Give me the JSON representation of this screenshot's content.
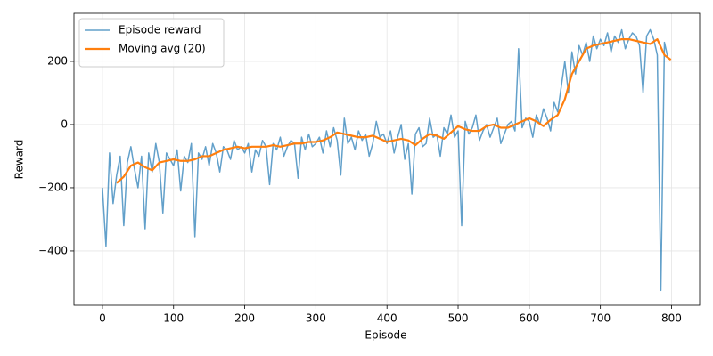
{
  "chart_data": {
    "type": "line",
    "xlabel": "Episode",
    "ylabel": "Reward",
    "xlim": [
      -40,
      839.5
    ],
    "ylim": [
      -572,
      352
    ],
    "xticks": [
      0,
      100,
      200,
      300,
      400,
      500,
      600,
      700,
      800
    ],
    "yticks": [
      {
        "value": -400,
        "label": "−400"
      },
      {
        "value": -200,
        "label": "−200"
      },
      0,
      200
    ],
    "grid": true,
    "legend": "upper left",
    "series": [
      {
        "name": "Episode reward",
        "color": "#1f77b4",
        "opacity": 0.7,
        "width": 1.5,
        "x": [
          0,
          5,
          10,
          15,
          20,
          25,
          30,
          35,
          40,
          45,
          50,
          55,
          60,
          65,
          70,
          75,
          80,
          85,
          90,
          95,
          100,
          105,
          110,
          115,
          120,
          125,
          130,
          135,
          140,
          145,
          150,
          155,
          160,
          165,
          170,
          175,
          180,
          185,
          190,
          195,
          200,
          205,
          210,
          215,
          220,
          225,
          230,
          235,
          240,
          245,
          250,
          255,
          260,
          265,
          270,
          275,
          280,
          285,
          290,
          295,
          300,
          305,
          310,
          315,
          320,
          325,
          330,
          335,
          340,
          345,
          350,
          355,
          360,
          365,
          370,
          375,
          380,
          385,
          390,
          395,
          400,
          405,
          410,
          415,
          420,
          425,
          430,
          435,
          440,
          445,
          450,
          455,
          460,
          465,
          470,
          475,
          480,
          485,
          490,
          495,
          500,
          505,
          510,
          515,
          520,
          525,
          530,
          535,
          540,
          545,
          550,
          555,
          560,
          565,
          570,
          575,
          580,
          585,
          590,
          595,
          600,
          605,
          610,
          615,
          620,
          625,
          630,
          635,
          640,
          645,
          650,
          655,
          660,
          665,
          670,
          675,
          680,
          685,
          690,
          695,
          700,
          705,
          710,
          715,
          720,
          725,
          730,
          735,
          740,
          745,
          750,
          755,
          760,
          765,
          770,
          775,
          780,
          785,
          790,
          795
        ],
        "values": [
          -200,
          -385,
          -90,
          -250,
          -160,
          -100,
          -320,
          -120,
          -70,
          -140,
          -200,
          -100,
          -330,
          -90,
          -150,
          -60,
          -120,
          -280,
          -90,
          -110,
          -130,
          -80,
          -210,
          -100,
          -120,
          -60,
          -355,
          -90,
          -110,
          -70,
          -130,
          -60,
          -90,
          -150,
          -70,
          -80,
          -110,
          -50,
          -80,
          -70,
          -90,
          -60,
          -150,
          -80,
          -100,
          -50,
          -70,
          -190,
          -60,
          -80,
          -40,
          -100,
          -70,
          -50,
          -60,
          -170,
          -40,
          -80,
          -30,
          -70,
          -60,
          -40,
          -90,
          -20,
          -70,
          -10,
          -50,
          -160,
          20,
          -60,
          -40,
          -80,
          -20,
          -50,
          -30,
          -100,
          -60,
          10,
          -40,
          -30,
          -60,
          -20,
          -90,
          -40,
          0,
          -110,
          -60,
          -220,
          -30,
          -10,
          -70,
          -60,
          20,
          -40,
          -30,
          -100,
          -10,
          -30,
          30,
          -40,
          -20,
          -320,
          10,
          -30,
          -10,
          30,
          -50,
          -20,
          0,
          -40,
          -10,
          20,
          -60,
          -30,
          0,
          10,
          -20,
          240,
          -10,
          20,
          10,
          -40,
          30,
          0,
          50,
          20,
          -20,
          70,
          40,
          120,
          200,
          100,
          230,
          160,
          250,
          220,
          260,
          200,
          280,
          240,
          270,
          250,
          290,
          230,
          280,
          260,
          300,
          240,
          270,
          290,
          280,
          250,
          100,
          280,
          300,
          270,
          220,
          -525,
          260,
          210
        ]
      },
      {
        "name": "Moving avg (20)",
        "color": "#ff7f0e",
        "opacity": 1,
        "width": 2.2,
        "x": [
          20,
          30,
          40,
          50,
          60,
          70,
          80,
          90,
          100,
          110,
          120,
          130,
          140,
          150,
          160,
          170,
          180,
          190,
          200,
          210,
          220,
          230,
          240,
          250,
          260,
          270,
          280,
          290,
          300,
          310,
          320,
          330,
          340,
          350,
          360,
          370,
          380,
          390,
          400,
          410,
          420,
          430,
          440,
          450,
          460,
          470,
          480,
          490,
          500,
          510,
          520,
          530,
          540,
          550,
          560,
          570,
          580,
          590,
          600,
          610,
          620,
          630,
          640,
          650,
          660,
          670,
          680,
          690,
          700,
          710,
          720,
          730,
          740,
          750,
          760,
          770,
          780,
          790,
          799
        ],
        "values": [
          -185,
          -165,
          -130,
          -120,
          -135,
          -145,
          -120,
          -115,
          -110,
          -115,
          -115,
          -110,
          -100,
          -100,
          -90,
          -80,
          -75,
          -70,
          -75,
          -70,
          -70,
          -70,
          -65,
          -70,
          -65,
          -60,
          -60,
          -55,
          -55,
          -50,
          -40,
          -25,
          -30,
          -35,
          -40,
          -40,
          -35,
          -45,
          -55,
          -50,
          -45,
          -50,
          -65,
          -45,
          -30,
          -35,
          -45,
          -25,
          -5,
          -15,
          -20,
          -20,
          -5,
          0,
          -10,
          -10,
          0,
          10,
          20,
          10,
          -5,
          15,
          30,
          80,
          160,
          200,
          240,
          250,
          255,
          260,
          265,
          270,
          270,
          265,
          260,
          255,
          270,
          220,
          205
        ]
      }
    ]
  }
}
